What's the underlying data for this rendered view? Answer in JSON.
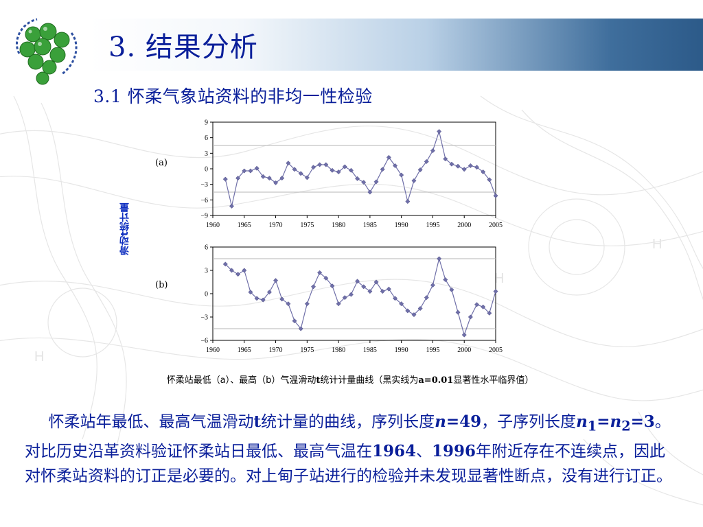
{
  "page": {
    "title": "3. 结果分析",
    "section_title": "3.1  怀柔气象站资料的非均一性检验",
    "side_label": "滑动t统计量",
    "caption": {
      "pre": "怀柔站最低（a）、最高（b）气温滑动",
      "t": "t",
      "mid": "统计计量曲线（黑实线为",
      "alpha": "a=0.01",
      "post": "显著性水平临界值）"
    },
    "body": {
      "p1": "怀柔站年最低、最高气温滑动",
      "t": "t",
      "p2": "统计量的曲线，序列长度",
      "n_var": "n",
      "n_val": "=49",
      "p3": "，子序列长度",
      "n1": "n",
      "sub1": "1",
      "eq": "=",
      "n2": "n",
      "sub2": "2",
      "val": "=3",
      "p4": "。对比历史沿革资料验证怀柔站日最低、最高气温在",
      "y1": "1964",
      "sep": "、",
      "y2": "1996",
      "p5": "年附近存在不连续点，因此对怀柔站资料的订正是必要的。对上甸子站进行的检验并未发现显著性断点，没有进行订正。"
    }
  },
  "chart_data": [
    {
      "type": "line",
      "panel_label": "(a)",
      "x": [
        1962,
        1963,
        1964,
        1965,
        1966,
        1967,
        1968,
        1969,
        1970,
        1971,
        1972,
        1973,
        1974,
        1975,
        1976,
        1977,
        1978,
        1979,
        1980,
        1981,
        1982,
        1983,
        1984,
        1985,
        1986,
        1987,
        1988,
        1989,
        1990,
        1991,
        1992,
        1993,
        1994,
        1995,
        1996,
        1997,
        1998,
        1999,
        2000,
        2001,
        2002,
        2003,
        2004,
        2005
      ],
      "values": [
        -2,
        -7.2,
        -1.8,
        -0.4,
        -0.4,
        0.1,
        -1.5,
        -1.8,
        -2.7,
        -1.8,
        1.1,
        -0.1,
        -0.9,
        -1.7,
        0.3,
        0.8,
        0.8,
        -0.3,
        -0.6,
        0.4,
        -0.3,
        -1.9,
        -2.6,
        -4.5,
        -2.5,
        -0.1,
        2.2,
        0.6,
        -1.2,
        -6.3,
        -2.3,
        -0.2,
        1.4,
        3.5,
        7.2,
        1.9,
        0.9,
        0.5,
        -0.1,
        0.6,
        0.3,
        -0.6,
        -2.1,
        -5.2
      ],
      "xlim": [
        1960,
        2005
      ],
      "ylim": [
        -9,
        9
      ],
      "xticks": [
        1960,
        1965,
        1970,
        1975,
        1980,
        1985,
        1990,
        1995,
        2000,
        2005
      ],
      "yticks": [
        9,
        6,
        3,
        0,
        -3,
        -6,
        -9
      ],
      "ytick_labels": [
        "9",
        "6",
        "3",
        "0",
        "−3",
        "−6",
        "−9"
      ],
      "critical": [
        4.5,
        -4.5
      ],
      "color": "#6f6fa8"
    },
    {
      "type": "line",
      "panel_label": "(b)",
      "x": [
        1962,
        1963,
        1964,
        1965,
        1966,
        1967,
        1968,
        1969,
        1970,
        1971,
        1972,
        1973,
        1974,
        1975,
        1976,
        1977,
        1978,
        1979,
        1980,
        1981,
        1982,
        1983,
        1984,
        1985,
        1986,
        1987,
        1988,
        1989,
        1990,
        1991,
        1992,
        1993,
        1994,
        1995,
        1996,
        1997,
        1998,
        1999,
        2000,
        2001,
        2002,
        2003,
        2004,
        2005
      ],
      "values": [
        3.8,
        3.0,
        2.5,
        3.0,
        0.2,
        -0.6,
        -0.8,
        0.2,
        1.7,
        -0.7,
        -1.3,
        -3.5,
        -4.5,
        -1.3,
        0.9,
        2.7,
        2.0,
        1.0,
        -1.3,
        -0.5,
        -0.1,
        1.6,
        0.9,
        0.3,
        1.5,
        0.3,
        0.6,
        -0.6,
        -1.3,
        -2.2,
        -2.7,
        -1.9,
        -0.5,
        1.1,
        4.5,
        1.8,
        0.5,
        -2.4,
        -5.3,
        -3.0,
        -1.4,
        -1.7,
        -2.5,
        0.3
      ],
      "xlim": [
        1960,
        2005
      ],
      "ylim": [
        -6,
        6
      ],
      "xticks": [
        1960,
        1965,
        1970,
        1975,
        1980,
        1985,
        1990,
        1995,
        2000,
        2005
      ],
      "yticks": [
        6,
        3,
        0,
        -3,
        -6
      ],
      "ytick_labels": [
        "6",
        "3",
        "0",
        "−3",
        "−6"
      ],
      "critical": [
        4.5,
        -4.5
      ],
      "color": "#6f6fa8"
    }
  ]
}
